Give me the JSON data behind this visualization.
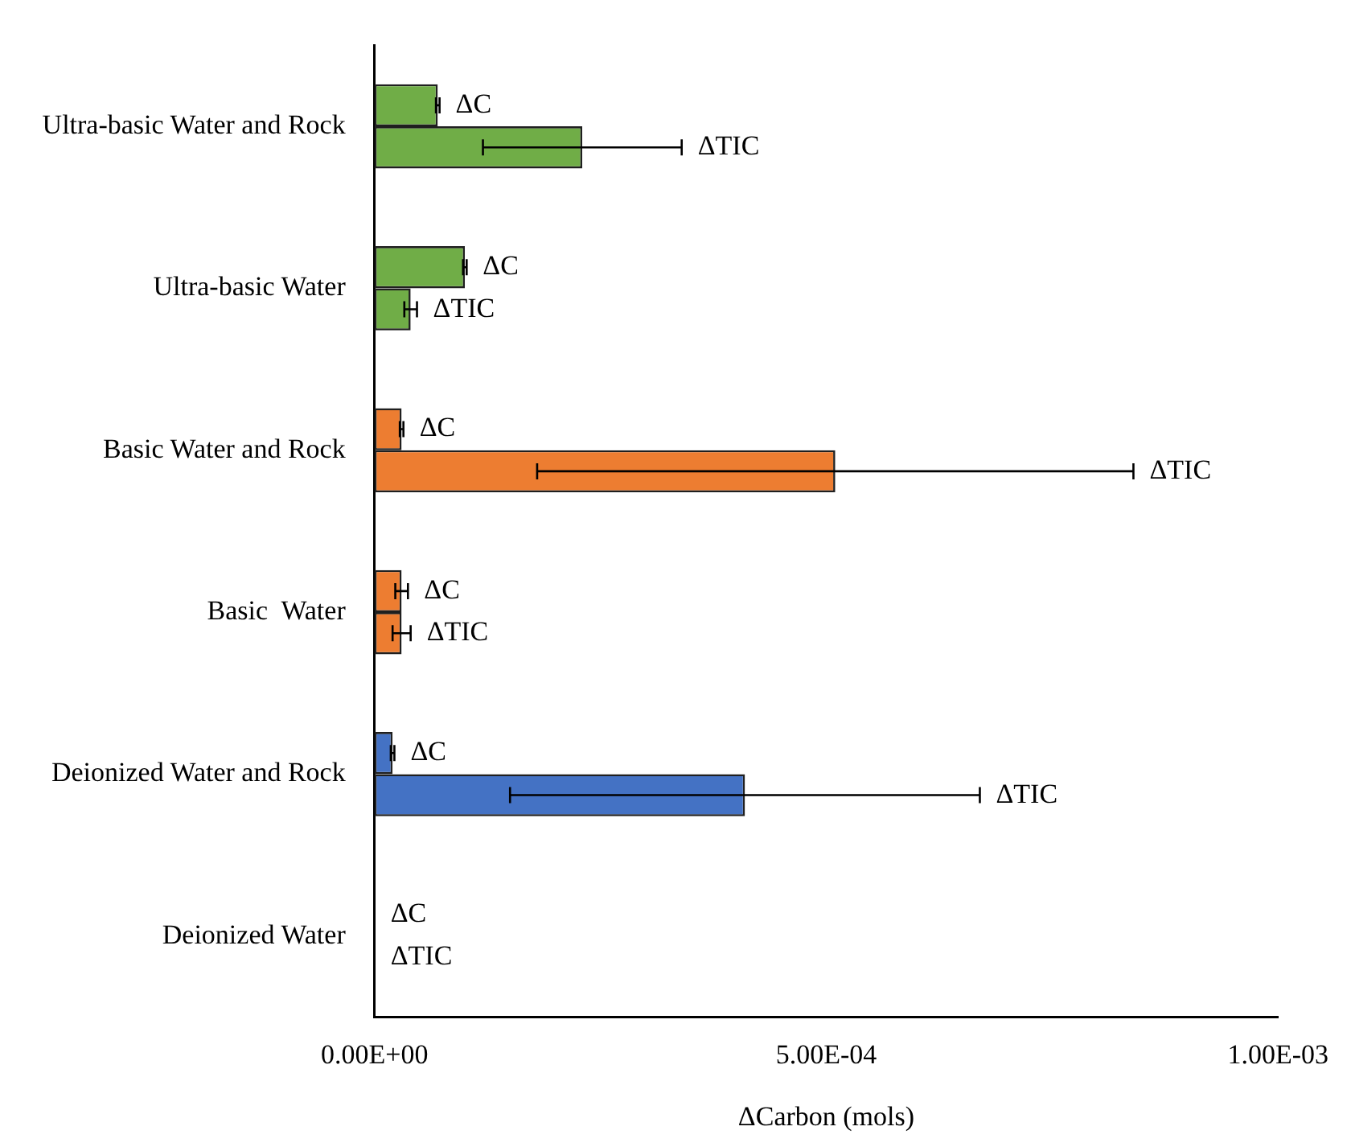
{
  "chart_data": {
    "type": "bar",
    "orientation": "horizontal",
    "xlabel": "ΔCarbon (mols)",
    "categories": [
      "Ultra-basic Water and Rock",
      "Ultra-basic Water",
      "Basic Water and Rock",
      "Basic  Water",
      "Deionized Water and Rock",
      "Deionized Water"
    ],
    "series": [
      {
        "name": "ΔC",
        "colors": [
          "#70ad47",
          "#70ad47",
          "#ed7d31",
          "#ed7d31",
          "#4472c4",
          "#4472c4"
        ],
        "values": [
          7e-05,
          0.0001,
          3e-05,
          3e-05,
          2e-05,
          0
        ],
        "errors": [
          2e-06,
          2e-06,
          2e-06,
          7e-06,
          2e-06,
          null
        ]
      },
      {
        "name": "ΔTIC",
        "colors": [
          "#70ad47",
          "#70ad47",
          "#ed7d31",
          "#ed7d31",
          "#4472c4",
          "#4472c4"
        ],
        "values": [
          0.00023,
          4e-05,
          0.00051,
          3e-05,
          0.00041,
          0
        ],
        "errors": [
          0.00011,
          7e-06,
          0.00033,
          1e-05,
          0.00026,
          null
        ]
      }
    ],
    "xlim": [
      0,
      0.001
    ],
    "xticks": [
      {
        "value": 0,
        "label": "0.00E+00"
      },
      {
        "value": 0.0005,
        "label": "5.00E-04"
      },
      {
        "value": 0.001,
        "label": "1.00E-03"
      }
    ],
    "grid": false,
    "legend": false
  }
}
